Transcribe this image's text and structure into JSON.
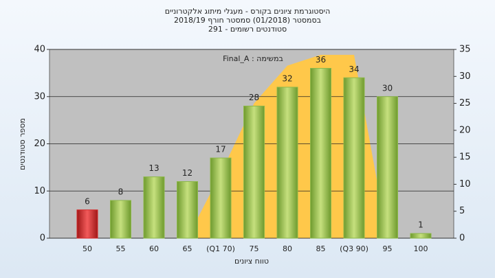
{
  "chart_data": {
    "type": "bar",
    "title": "היסטוגרמת ציונים בקורס - מעגלי מיתוג אלקטרוניים",
    "subtitle": [
      "בסמסטר  (01/2018)  סמסטר חורף 2018/19",
      "סטודנטים רשומים - 291"
    ],
    "annotation": "Final_A : במשימה",
    "x_label": "טווח ציונים",
    "y_label": "מספר סטודנטים",
    "categories": [
      "50",
      "55",
      "60",
      "65",
      "(Q1 70)",
      "75",
      "80",
      "85",
      "(Q3 90)",
      "95",
      "100"
    ],
    "values": [
      6,
      8,
      13,
      12,
      17,
      28,
      32,
      36,
      34,
      30,
      1
    ],
    "colors": [
      "#d42a2a",
      "#8db84a",
      "#8db84a",
      "#8db84a",
      "#8db84a",
      "#8db84a",
      "#8db84a",
      "#8db84a",
      "#8db84a",
      "#8db84a",
      "#8db84a"
    ],
    "area": {
      "axis": "y2",
      "color": "#ffc84a",
      "values": [
        null,
        null,
        null,
        0,
        12,
        25,
        32,
        34,
        34,
        0,
        null
      ]
    },
    "ylim": [
      0,
      40
    ],
    "yticks": [
      0,
      10,
      20,
      30,
      40
    ],
    "y2lim": [
      0,
      35
    ],
    "y2ticks": [
      0,
      5,
      10,
      15,
      20,
      25,
      30,
      35
    ],
    "grid": true
  }
}
